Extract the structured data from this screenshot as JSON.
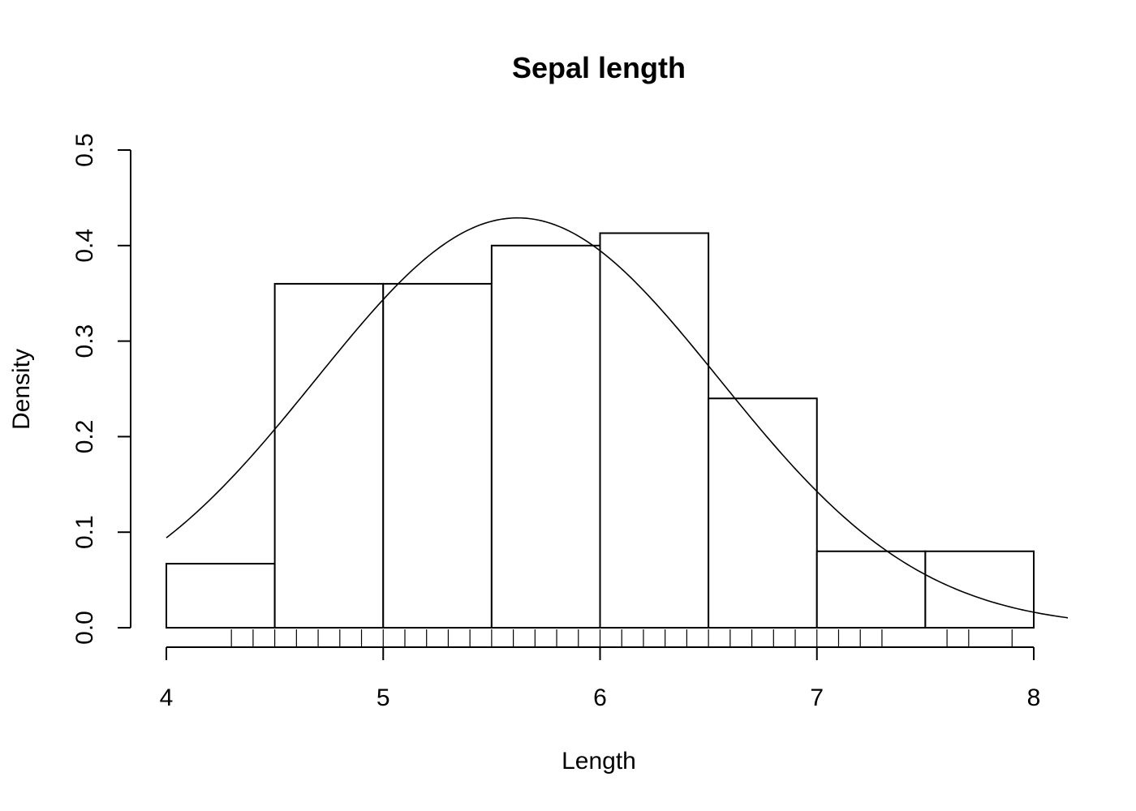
{
  "chart_data": {
    "type": "bar",
    "subtype": "histogram-with-density",
    "title": "Sepal length",
    "xlabel": "Length",
    "ylabel": "Density",
    "xlim": [
      4,
      8
    ],
    "ylim": [
      0,
      0.5
    ],
    "x_ticks": [
      "4",
      "5",
      "6",
      "7",
      "8"
    ],
    "y_ticks": [
      "0.0",
      "0.1",
      "0.2",
      "0.3",
      "0.4",
      "0.5"
    ],
    "bins": [
      {
        "x0": 4.0,
        "x1": 4.5,
        "density": 0.067
      },
      {
        "x0": 4.5,
        "x1": 5.0,
        "density": 0.36
      },
      {
        "x0": 5.0,
        "x1": 5.5,
        "density": 0.36
      },
      {
        "x0": 5.5,
        "x1": 6.0,
        "density": 0.4
      },
      {
        "x0": 6.0,
        "x1": 6.5,
        "density": 0.413
      },
      {
        "x0": 6.5,
        "x1": 7.0,
        "density": 0.24
      },
      {
        "x0": 7.0,
        "x1": 7.5,
        "density": 0.08
      },
      {
        "x0": 7.5,
        "x1": 8.0,
        "density": 0.08
      }
    ],
    "normal_curve": {
      "mean": 5.62,
      "sd": 0.93
    },
    "rug": [
      4.3,
      4.4,
      4.5,
      4.6,
      4.7,
      4.8,
      4.9,
      5.0,
      5.1,
      5.2,
      5.3,
      5.4,
      5.5,
      5.6,
      5.7,
      5.8,
      5.9,
      6.0,
      6.1,
      6.2,
      6.3,
      6.4,
      6.5,
      6.6,
      6.7,
      6.8,
      6.9,
      7.0,
      7.1,
      7.2,
      7.3,
      7.6,
      7.7,
      7.9
    ],
    "grid": false,
    "legend": "none"
  }
}
